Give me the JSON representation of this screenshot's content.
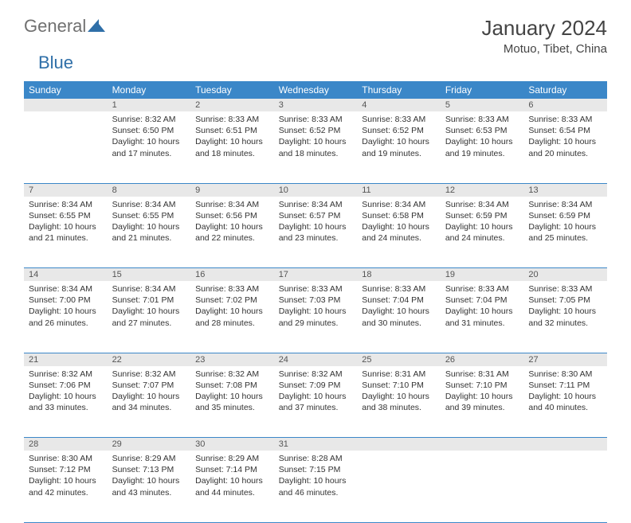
{
  "brand": {
    "part1": "General",
    "part2": "Blue",
    "color1": "#707070",
    "color2": "#2f6fa8"
  },
  "title": "January 2024",
  "location": "Motuo, Tibet, China",
  "colors": {
    "header_bg": "#3b87c8",
    "header_text": "#ffffff",
    "daynum_bg": "#e8e8e8",
    "daynum_text": "#555555",
    "border": "#3b87c8",
    "body_text": "#333333"
  },
  "weekdays": [
    "Sunday",
    "Monday",
    "Tuesday",
    "Wednesday",
    "Thursday",
    "Friday",
    "Saturday"
  ],
  "weeks": [
    [
      null,
      {
        "n": 1,
        "sr": "8:32 AM",
        "ss": "6:50 PM",
        "dl": "10 hours and 17 minutes."
      },
      {
        "n": 2,
        "sr": "8:33 AM",
        "ss": "6:51 PM",
        "dl": "10 hours and 18 minutes."
      },
      {
        "n": 3,
        "sr": "8:33 AM",
        "ss": "6:52 PM",
        "dl": "10 hours and 18 minutes."
      },
      {
        "n": 4,
        "sr": "8:33 AM",
        "ss": "6:52 PM",
        "dl": "10 hours and 19 minutes."
      },
      {
        "n": 5,
        "sr": "8:33 AM",
        "ss": "6:53 PM",
        "dl": "10 hours and 19 minutes."
      },
      {
        "n": 6,
        "sr": "8:33 AM",
        "ss": "6:54 PM",
        "dl": "10 hours and 20 minutes."
      }
    ],
    [
      {
        "n": 7,
        "sr": "8:34 AM",
        "ss": "6:55 PM",
        "dl": "10 hours and 21 minutes."
      },
      {
        "n": 8,
        "sr": "8:34 AM",
        "ss": "6:55 PM",
        "dl": "10 hours and 21 minutes."
      },
      {
        "n": 9,
        "sr": "8:34 AM",
        "ss": "6:56 PM",
        "dl": "10 hours and 22 minutes."
      },
      {
        "n": 10,
        "sr": "8:34 AM",
        "ss": "6:57 PM",
        "dl": "10 hours and 23 minutes."
      },
      {
        "n": 11,
        "sr": "8:34 AM",
        "ss": "6:58 PM",
        "dl": "10 hours and 24 minutes."
      },
      {
        "n": 12,
        "sr": "8:34 AM",
        "ss": "6:59 PM",
        "dl": "10 hours and 24 minutes."
      },
      {
        "n": 13,
        "sr": "8:34 AM",
        "ss": "6:59 PM",
        "dl": "10 hours and 25 minutes."
      }
    ],
    [
      {
        "n": 14,
        "sr": "8:34 AM",
        "ss": "7:00 PM",
        "dl": "10 hours and 26 minutes."
      },
      {
        "n": 15,
        "sr": "8:34 AM",
        "ss": "7:01 PM",
        "dl": "10 hours and 27 minutes."
      },
      {
        "n": 16,
        "sr": "8:33 AM",
        "ss": "7:02 PM",
        "dl": "10 hours and 28 minutes."
      },
      {
        "n": 17,
        "sr": "8:33 AM",
        "ss": "7:03 PM",
        "dl": "10 hours and 29 minutes."
      },
      {
        "n": 18,
        "sr": "8:33 AM",
        "ss": "7:04 PM",
        "dl": "10 hours and 30 minutes."
      },
      {
        "n": 19,
        "sr": "8:33 AM",
        "ss": "7:04 PM",
        "dl": "10 hours and 31 minutes."
      },
      {
        "n": 20,
        "sr": "8:33 AM",
        "ss": "7:05 PM",
        "dl": "10 hours and 32 minutes."
      }
    ],
    [
      {
        "n": 21,
        "sr": "8:32 AM",
        "ss": "7:06 PM",
        "dl": "10 hours and 33 minutes."
      },
      {
        "n": 22,
        "sr": "8:32 AM",
        "ss": "7:07 PM",
        "dl": "10 hours and 34 minutes."
      },
      {
        "n": 23,
        "sr": "8:32 AM",
        "ss": "7:08 PM",
        "dl": "10 hours and 35 minutes."
      },
      {
        "n": 24,
        "sr": "8:32 AM",
        "ss": "7:09 PM",
        "dl": "10 hours and 37 minutes."
      },
      {
        "n": 25,
        "sr": "8:31 AM",
        "ss": "7:10 PM",
        "dl": "10 hours and 38 minutes."
      },
      {
        "n": 26,
        "sr": "8:31 AM",
        "ss": "7:10 PM",
        "dl": "10 hours and 39 minutes."
      },
      {
        "n": 27,
        "sr": "8:30 AM",
        "ss": "7:11 PM",
        "dl": "10 hours and 40 minutes."
      }
    ],
    [
      {
        "n": 28,
        "sr": "8:30 AM",
        "ss": "7:12 PM",
        "dl": "10 hours and 42 minutes."
      },
      {
        "n": 29,
        "sr": "8:29 AM",
        "ss": "7:13 PM",
        "dl": "10 hours and 43 minutes."
      },
      {
        "n": 30,
        "sr": "8:29 AM",
        "ss": "7:14 PM",
        "dl": "10 hours and 44 minutes."
      },
      {
        "n": 31,
        "sr": "8:28 AM",
        "ss": "7:15 PM",
        "dl": "10 hours and 46 minutes."
      },
      null,
      null,
      null
    ]
  ],
  "labels": {
    "sunrise": "Sunrise:",
    "sunset": "Sunset:",
    "daylight": "Daylight:"
  }
}
